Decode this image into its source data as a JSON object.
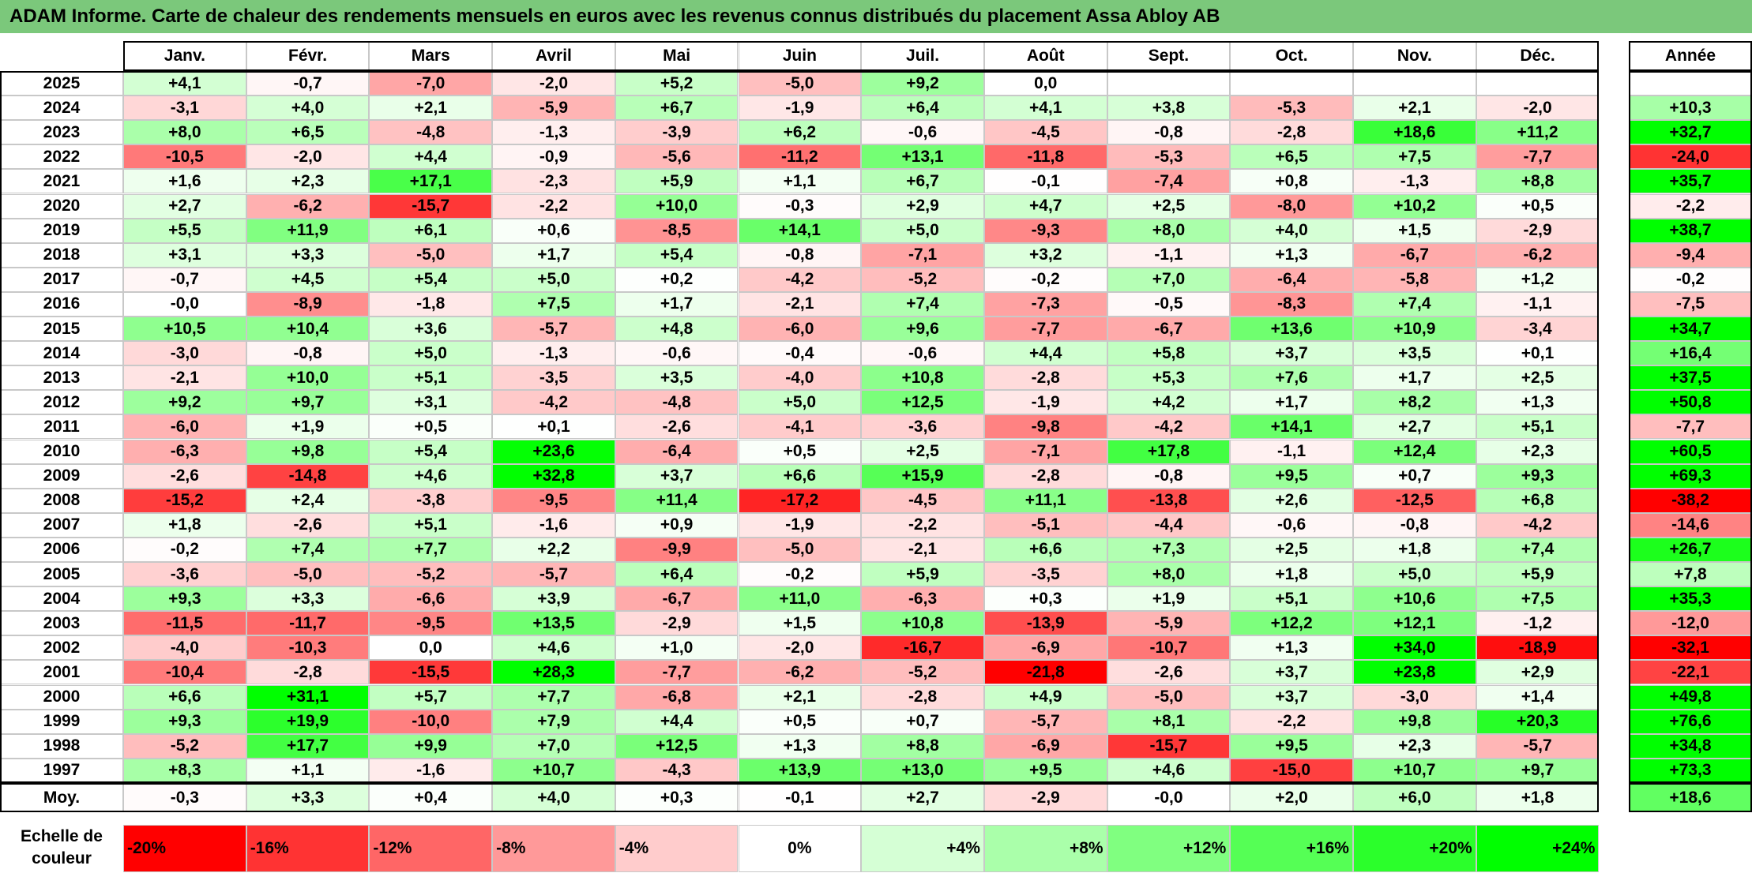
{
  "title": "ADAM Informe. Carte de chaleur des rendements mensuels en euros avec les revenus connus distribués du placement Assa Abloy AB",
  "chart_data": {
    "type": "heatmap",
    "months": [
      "Janv.",
      "Févr.",
      "Mars",
      "Avril",
      "Mai",
      "Juin",
      "Juil.",
      "Août",
      "Sept.",
      "Oct.",
      "Nov.",
      "Déc."
    ],
    "annual_header": "Année",
    "rows": [
      {
        "year": "2025",
        "values": [
          "+4,1",
          "-0,7",
          "-7,0",
          "-2,0",
          "+5,2",
          "-5,0",
          "+9,2",
          "0,0",
          "",
          "",
          "",
          ""
        ],
        "annual": ""
      },
      {
        "year": "2024",
        "values": [
          "-3,1",
          "+4,0",
          "+2,1",
          "-5,9",
          "+6,7",
          "-1,9",
          "+6,4",
          "+4,1",
          "+3,8",
          "-5,3",
          "+2,1",
          "-2,0"
        ],
        "annual": "+10,3"
      },
      {
        "year": "2023",
        "values": [
          "+8,0",
          "+6,5",
          "-4,8",
          "-1,3",
          "-3,9",
          "+6,2",
          "-0,6",
          "-4,5",
          "-0,8",
          "-2,8",
          "+18,6",
          "+11,2"
        ],
        "annual": "+32,7"
      },
      {
        "year": "2022",
        "values": [
          "-10,5",
          "-2,0",
          "+4,4",
          "-0,9",
          "-5,6",
          "-11,2",
          "+13,1",
          "-11,8",
          "-5,3",
          "+6,5",
          "+7,5",
          "-7,7"
        ],
        "annual": "-24,0"
      },
      {
        "year": "2021",
        "values": [
          "+1,6",
          "+2,3",
          "+17,1",
          "-2,3",
          "+5,9",
          "+1,1",
          "+6,7",
          "-0,1",
          "-7,4",
          "+0,8",
          "-1,3",
          "+8,8"
        ],
        "annual": "+35,7"
      },
      {
        "year": "2020",
        "values": [
          "+2,7",
          "-6,2",
          "-15,7",
          "-2,2",
          "+10,0",
          "-0,3",
          "+2,9",
          "+4,7",
          "+2,5",
          "-8,0",
          "+10,2",
          "+0,5"
        ],
        "annual": "-2,2"
      },
      {
        "year": "2019",
        "values": [
          "+5,5",
          "+11,9",
          "+6,1",
          "+0,6",
          "-8,5",
          "+14,1",
          "+5,0",
          "-9,3",
          "+8,0",
          "+4,0",
          "+1,5",
          "-2,9"
        ],
        "annual": "+38,7"
      },
      {
        "year": "2018",
        "values": [
          "+3,1",
          "+3,3",
          "-5,0",
          "+1,7",
          "+5,4",
          "-0,8",
          "-7,1",
          "+3,2",
          "-1,1",
          "+1,3",
          "-6,7",
          "-6,2"
        ],
        "annual": "-9,4"
      },
      {
        "year": "2017",
        "values": [
          "-0,7",
          "+4,5",
          "+5,4",
          "+5,0",
          "+0,2",
          "-4,2",
          "-5,2",
          "-0,2",
          "+7,0",
          "-6,4",
          "-5,8",
          "+1,2"
        ],
        "annual": "-0,2"
      },
      {
        "year": "2016",
        "values": [
          "-0,0",
          "-8,9",
          "-1,8",
          "+7,5",
          "+1,7",
          "-2,1",
          "+7,4",
          "-7,3",
          "-0,5",
          "-8,3",
          "+7,4",
          "-1,1"
        ],
        "annual": "-7,5"
      },
      {
        "year": "2015",
        "values": [
          "+10,5",
          "+10,4",
          "+3,6",
          "-5,7",
          "+4,8",
          "-6,0",
          "+9,6",
          "-7,7",
          "-6,7",
          "+13,6",
          "+10,9",
          "-3,4"
        ],
        "annual": "+34,7"
      },
      {
        "year": "2014",
        "values": [
          "-3,0",
          "-0,8",
          "+5,0",
          "-1,3",
          "-0,6",
          "-0,4",
          "-0,6",
          "+4,4",
          "+5,8",
          "+3,7",
          "+3,5",
          "+0,1"
        ],
        "annual": "+16,4"
      },
      {
        "year": "2013",
        "values": [
          "-2,1",
          "+10,0",
          "+5,1",
          "-3,5",
          "+3,5",
          "-4,0",
          "+10,8",
          "-2,8",
          "+5,3",
          "+7,6",
          "+1,7",
          "+2,5"
        ],
        "annual": "+37,5"
      },
      {
        "year": "2012",
        "values": [
          "+9,2",
          "+9,7",
          "+3,1",
          "-4,2",
          "-4,8",
          "+5,0",
          "+12,5",
          "-1,9",
          "+4,2",
          "+1,7",
          "+8,2",
          "+1,3"
        ],
        "annual": "+50,8"
      },
      {
        "year": "2011",
        "values": [
          "-6,0",
          "+1,9",
          "+0,5",
          "+0,1",
          "-2,6",
          "-4,1",
          "-3,6",
          "-9,8",
          "-4,2",
          "+14,1",
          "+2,7",
          "+5,1"
        ],
        "annual": "-7,7"
      },
      {
        "year": "2010",
        "values": [
          "-6,3",
          "+9,8",
          "+5,4",
          "+23,6",
          "-6,4",
          "+0,5",
          "+2,5",
          "-7,1",
          "+17,8",
          "-1,1",
          "+12,4",
          "+2,3"
        ],
        "annual": "+60,5"
      },
      {
        "year": "2009",
        "values": [
          "-2,6",
          "-14,8",
          "+4,6",
          "+32,8",
          "+3,7",
          "+6,6",
          "+15,9",
          "-2,8",
          "-0,8",
          "+9,5",
          "+0,7",
          "+9,3"
        ],
        "annual": "+69,3"
      },
      {
        "year": "2008",
        "values": [
          "-15,2",
          "+2,4",
          "-3,8",
          "-9,5",
          "+11,4",
          "-17,2",
          "-4,5",
          "+11,1",
          "-13,8",
          "+2,6",
          "-12,5",
          "+6,8"
        ],
        "annual": "-38,2"
      },
      {
        "year": "2007",
        "values": [
          "+1,8",
          "-2,6",
          "+5,1",
          "-1,6",
          "+0,9",
          "-1,9",
          "-2,2",
          "-5,1",
          "-4,4",
          "-0,6",
          "-0,8",
          "-4,2"
        ],
        "annual": "-14,6"
      },
      {
        "year": "2006",
        "values": [
          "-0,2",
          "+7,4",
          "+7,7",
          "+2,2",
          "-9,9",
          "-5,0",
          "-2,1",
          "+6,6",
          "+7,3",
          "+2,5",
          "+1,8",
          "+7,4"
        ],
        "annual": "+26,7"
      },
      {
        "year": "2005",
        "values": [
          "-3,6",
          "-5,0",
          "-5,2",
          "-5,7",
          "+6,4",
          "-0,2",
          "+5,9",
          "-3,5",
          "+8,0",
          "+1,8",
          "+5,0",
          "+5,9"
        ],
        "annual": "+7,8"
      },
      {
        "year": "2004",
        "values": [
          "+9,3",
          "+3,3",
          "-6,6",
          "+3,9",
          "-6,7",
          "+11,0",
          "-6,3",
          "+0,3",
          "+1,9",
          "+5,1",
          "+10,6",
          "+7,5"
        ],
        "annual": "+35,3"
      },
      {
        "year": "2003",
        "values": [
          "-11,5",
          "-11,7",
          "-9,5",
          "+13,5",
          "-2,9",
          "+1,5",
          "+10,8",
          "-13,9",
          "-5,9",
          "+12,2",
          "+12,1",
          "-1,2"
        ],
        "annual": "-12,0"
      },
      {
        "year": "2002",
        "values": [
          "-4,0",
          "-10,3",
          "0,0",
          "+4,6",
          "+1,0",
          "-2,0",
          "-16,7",
          "-6,9",
          "-10,7",
          "+1,3",
          "+34,0",
          "-18,9"
        ],
        "annual": "-32,1"
      },
      {
        "year": "2001",
        "values": [
          "-10,4",
          "-2,8",
          "-15,5",
          "+28,3",
          "-7,7",
          "-6,2",
          "-5,2",
          "-21,8",
          "-2,6",
          "+3,7",
          "+23,8",
          "+2,9"
        ],
        "annual": "-22,1"
      },
      {
        "year": "2000",
        "values": [
          "+6,6",
          "+31,1",
          "+5,7",
          "+7,7",
          "-6,8",
          "+2,1",
          "-2,8",
          "+4,9",
          "-5,0",
          "+3,7",
          "-3,0",
          "+1,4"
        ],
        "annual": "+49,8"
      },
      {
        "year": "1999",
        "values": [
          "+9,3",
          "+19,9",
          "-10,0",
          "+7,9",
          "+4,4",
          "+0,5",
          "+0,7",
          "-5,7",
          "+8,1",
          "-2,2",
          "+9,8",
          "+20,3"
        ],
        "annual": "+76,6"
      },
      {
        "year": "1998",
        "values": [
          "-5,2",
          "+17,7",
          "+9,9",
          "+7,0",
          "+12,5",
          "+1,3",
          "+8,8",
          "-6,9",
          "-15,7",
          "+9,5",
          "+2,3",
          "-5,7"
        ],
        "annual": "+34,8"
      },
      {
        "year": "1997",
        "values": [
          "+8,3",
          "+1,1",
          "-1,6",
          "+10,7",
          "-4,3",
          "+13,9",
          "+13,0",
          "+9,5",
          "+4,6",
          "-15,0",
          "+10,7",
          "+9,7"
        ],
        "annual": "+73,3"
      }
    ],
    "average": {
      "label": "Moy.",
      "values": [
        "-0,3",
        "+3,3",
        "+0,4",
        "+4,0",
        "+0,3",
        "-0,1",
        "+2,7",
        "-2,9",
        "-0,0",
        "+2,0",
        "+6,0",
        "+1,8"
      ],
      "annual": "+18,6"
    },
    "scale": {
      "label": "Echelle de couleur",
      "stops": [
        {
          "value": -20,
          "text": "-20%"
        },
        {
          "value": -16,
          "text": "-16%"
        },
        {
          "value": -12,
          "text": "-12%"
        },
        {
          "value": -8,
          "text": "-8%"
        },
        {
          "value": -4,
          "text": "-4%"
        },
        {
          "value": 0,
          "text": "0%"
        },
        {
          "value": 4,
          "text": "+4%"
        },
        {
          "value": 8,
          "text": "+8%"
        },
        {
          "value": 12,
          "text": "+12%"
        },
        {
          "value": 16,
          "text": "+16%"
        },
        {
          "value": 20,
          "text": "+20%"
        },
        {
          "value": 24,
          "text": "+24%"
        }
      ]
    },
    "colors": {
      "negative": "#ff0000",
      "neutral": "#ffffff",
      "positive": "#00ff00",
      "title_background": "#7bc87b"
    }
  }
}
